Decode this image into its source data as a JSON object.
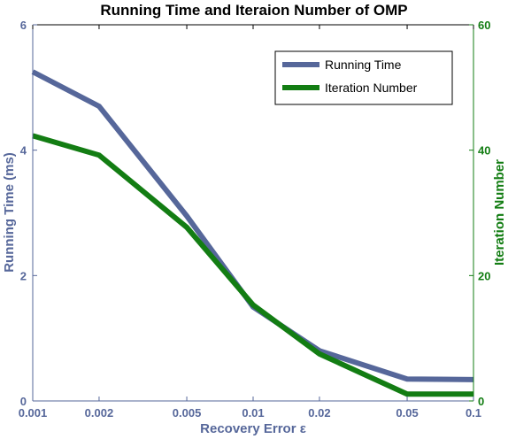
{
  "chart_data": {
    "type": "line",
    "title": "Running Time and Iteraion Number of OMP",
    "xlabel": "Recovery Error ε",
    "x_scale": "log",
    "x": [
      0.001,
      0.002,
      0.005,
      0.01,
      0.02,
      0.05,
      0.1
    ],
    "x_tick_labels": [
      "0.001",
      "0.002",
      "0.005",
      "0.01",
      "0.02",
      "0.05",
      "0.1"
    ],
    "grid": false,
    "legend_position": "top-right",
    "left_axis": {
      "label": "Running Time (ms)",
      "ylim": [
        0,
        6
      ],
      "ticks": [
        "0",
        "2",
        "4",
        "6"
      ],
      "color": "#56679a"
    },
    "right_axis": {
      "label": "Iteration Number",
      "ylim": [
        0,
        60
      ],
      "ticks": [
        "0",
        "20",
        "40",
        "60"
      ],
      "color": "#137d13"
    },
    "series": [
      {
        "name": "Running Time",
        "axis": "left",
        "color": "#56679a",
        "values": [
          5.25,
          4.7,
          2.95,
          1.5,
          0.8,
          0.35,
          0.34
        ]
      },
      {
        "name": "Iteration Number",
        "axis": "right",
        "color": "#137d13",
        "values": [
          42.3,
          39.2,
          27.7,
          15.3,
          7.5,
          1.1,
          1.1
        ]
      }
    ]
  }
}
